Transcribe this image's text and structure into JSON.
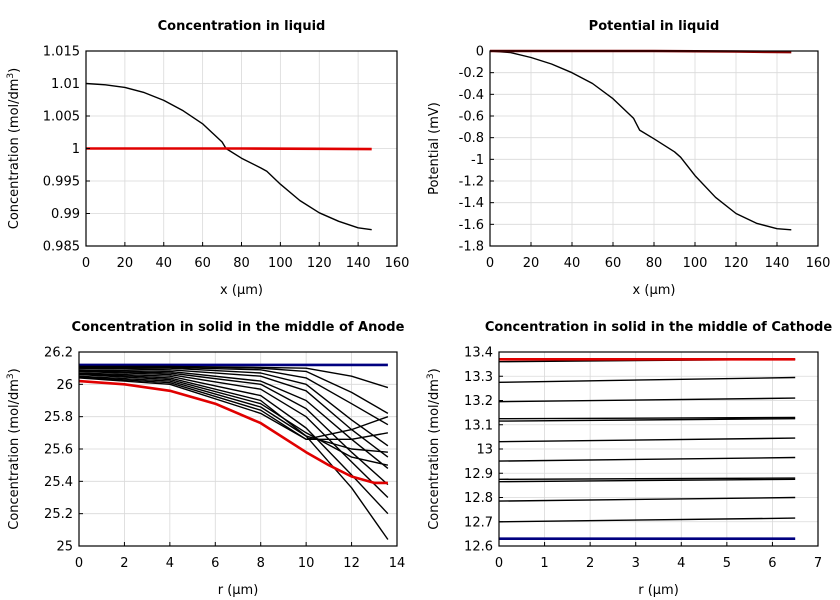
{
  "chart_data": [
    {
      "type": "line",
      "title": "Concentration in liquid",
      "xlabel": "x (µm)",
      "ylabel": "Concentration (mol/dm",
      "ylabel_sup": "3",
      "ylabel_tail": ")",
      "xlim": [
        0,
        160
      ],
      "ylim": [
        0.985,
        1.015
      ],
      "x_ticks": [
        "0",
        "20",
        "40",
        "60",
        "80",
        "100",
        "120",
        "140",
        "160"
      ],
      "y_ticks": [
        "0.985",
        "0.99",
        "0.995",
        "1",
        "1.005",
        "1.01",
        "1.015"
      ],
      "grid": true,
      "series": [
        {
          "color": "#000000",
          "x": [
            0,
            10,
            20,
            30,
            40,
            50,
            60,
            70,
            72,
            80,
            90,
            93,
            100,
            110,
            120,
            130,
            140,
            147
          ],
          "y": [
            1.01,
            1.0098,
            1.0094,
            1.0086,
            1.0074,
            1.0058,
            1.0038,
            1.001,
            1.0,
            0.9985,
            0.997,
            0.9965,
            0.9945,
            0.992,
            0.9901,
            0.9888,
            0.9878,
            0.9875
          ]
        },
        {
          "color": "#e00000",
          "x": [
            0,
            40,
            80,
            120,
            147
          ],
          "y": [
            1.0,
            1.0,
            1.0,
            0.99995,
            0.9999
          ]
        }
      ]
    },
    {
      "type": "line",
      "title": "Potential in liquid",
      "xlabel": "x (µm)",
      "ylabel": "Potential (mV)",
      "ylabel_sup": "",
      "ylabel_tail": "",
      "xlim": [
        0,
        160
      ],
      "ylim": [
        -1.8,
        0
      ],
      "x_ticks": [
        "0",
        "20",
        "40",
        "60",
        "80",
        "100",
        "120",
        "140",
        "160"
      ],
      "y_ticks": [
        "-1.8",
        "-1.6",
        "-1.4",
        "-1.2",
        "-1",
        "-0.8",
        "-0.6",
        "-0.4",
        "-0.2",
        "0"
      ],
      "grid": true,
      "series": [
        {
          "color": "#000000",
          "x": [
            0,
            10,
            20,
            30,
            40,
            50,
            60,
            70,
            73,
            80,
            90,
            93,
            100,
            110,
            120,
            130,
            140,
            147
          ],
          "y": [
            0.0,
            -0.015,
            -0.06,
            -0.12,
            -0.2,
            -0.3,
            -0.44,
            -0.62,
            -0.73,
            -0.81,
            -0.93,
            -0.98,
            -1.15,
            -1.35,
            -1.5,
            -1.59,
            -1.64,
            -1.65
          ]
        },
        {
          "color": "#8b0000",
          "x": [
            0,
            40,
            80,
            120,
            147
          ],
          "y": [
            0.0,
            0.0,
            0.0,
            -0.005,
            -0.01
          ]
        }
      ]
    },
    {
      "type": "line",
      "title": "Concentration in solid in the middle of Anode",
      "xlabel": "r (µm)",
      "ylabel": "Concentration (mol/dm",
      "ylabel_sup": "3",
      "ylabel_tail": ")",
      "xlim": [
        0,
        14
      ],
      "ylim": [
        25,
        26.2
      ],
      "x_ticks": [
        "0",
        "2",
        "4",
        "6",
        "8",
        "10",
        "12",
        "14"
      ],
      "y_ticks": [
        "25",
        "25.2",
        "25.4",
        "25.6",
        "25.8",
        "26",
        "26.2"
      ],
      "grid": true,
      "series": [
        {
          "color": "#000080",
          "x": [
            0,
            4,
            8,
            12,
            13.6
          ],
          "y": [
            26.12,
            26.12,
            26.12,
            26.12,
            26.12
          ]
        },
        {
          "color": "#000000",
          "x": [
            0,
            4,
            8,
            10,
            12,
            13.6
          ],
          "y": [
            26.11,
            26.11,
            26.105,
            26.1,
            26.05,
            25.98
          ]
        },
        {
          "color": "#000000",
          "x": [
            0,
            4,
            8,
            10,
            12,
            13.6
          ],
          "y": [
            26.11,
            26.11,
            26.1,
            26.08,
            25.95,
            25.82
          ]
        },
        {
          "color": "#000000",
          "x": [
            0,
            4,
            8,
            10,
            12,
            13.6
          ],
          "y": [
            26.105,
            26.105,
            26.09,
            26.04,
            25.88,
            25.75
          ]
        },
        {
          "color": "#000000",
          "x": [
            0,
            4,
            8,
            10,
            12,
            13.6
          ],
          "y": [
            26.1,
            26.1,
            26.07,
            26.0,
            25.78,
            25.62
          ]
        },
        {
          "color": "#000000",
          "x": [
            0,
            4,
            8,
            10,
            12,
            13.6
          ],
          "y": [
            26.1,
            26.09,
            26.05,
            25.96,
            25.72,
            25.55
          ]
        },
        {
          "color": "#000000",
          "x": [
            0,
            4,
            8,
            10,
            12,
            13.6
          ],
          "y": [
            26.09,
            26.08,
            26.02,
            25.9,
            25.66,
            25.48
          ]
        },
        {
          "color": "#000000",
          "x": [
            0,
            4,
            8,
            10,
            12,
            13.6
          ],
          "y": [
            26.085,
            26.07,
            26.0,
            25.85,
            25.58,
            25.38
          ]
        },
        {
          "color": "#000000",
          "x": [
            0,
            4,
            8,
            10,
            12,
            13.6
          ],
          "y": [
            26.08,
            26.06,
            25.97,
            25.8,
            25.52,
            25.3
          ]
        },
        {
          "color": "#000000",
          "x": [
            0,
            4,
            8,
            10,
            12,
            13.6
          ],
          "y": [
            26.07,
            26.05,
            25.93,
            25.73,
            25.44,
            25.2
          ]
        },
        {
          "color": "#000000",
          "x": [
            0,
            4,
            8,
            10,
            12,
            13.6
          ],
          "y": [
            26.065,
            26.04,
            25.9,
            25.68,
            25.36,
            25.04
          ]
        },
        {
          "color": "#000000",
          "x": [
            0,
            4,
            8,
            10,
            12,
            13.6
          ],
          "y": [
            26.06,
            26.03,
            25.88,
            25.7,
            25.55,
            25.5
          ]
        },
        {
          "color": "#000000",
          "x": [
            0,
            4,
            8,
            10,
            12,
            13.6
          ],
          "y": [
            26.05,
            26.02,
            25.86,
            25.68,
            25.6,
            25.58
          ]
        },
        {
          "color": "#000000",
          "x": [
            0,
            4,
            8,
            10,
            12,
            13.6
          ],
          "y": [
            26.045,
            26.01,
            25.84,
            25.66,
            25.66,
            25.7
          ]
        },
        {
          "color": "#000000",
          "x": [
            0,
            4,
            8,
            10,
            12,
            13.6
          ],
          "y": [
            26.04,
            26.0,
            25.82,
            25.66,
            25.72,
            25.8
          ]
        },
        {
          "color": "#e00000",
          "x": [
            0,
            2,
            4,
            6,
            8,
            10,
            11,
            12,
            13,
            13.6
          ],
          "y": [
            26.02,
            26.0,
            25.96,
            25.88,
            25.76,
            25.58,
            25.5,
            25.43,
            25.39,
            25.39
          ]
        }
      ]
    },
    {
      "type": "line",
      "title": "Concentration in solid in the middle of Cathode",
      "xlabel": "r (µm)",
      "ylabel": "Concentration (mol/dm",
      "ylabel_sup": "3",
      "ylabel_tail": ")",
      "xlim": [
        0,
        7
      ],
      "ylim": [
        12.6,
        13.4
      ],
      "x_ticks": [
        "0",
        "1",
        "2",
        "3",
        "4",
        "5",
        "6",
        "7"
      ],
      "y_ticks": [
        "12.6",
        "12.7",
        "12.8",
        "12.9",
        "13",
        "13.1",
        "13.2",
        "13.3",
        "13.4"
      ],
      "grid": true,
      "series": [
        {
          "color": "#000080",
          "x": [
            0,
            6.5
          ],
          "y": [
            12.63,
            12.63
          ]
        },
        {
          "color": "#000000",
          "x": [
            0,
            6.5
          ],
          "y": [
            12.7,
            12.715
          ]
        },
        {
          "color": "#000000",
          "x": [
            0,
            6.5
          ],
          "y": [
            12.785,
            12.8
          ]
        },
        {
          "color": "#000000",
          "x": [
            0,
            6.5
          ],
          "y": [
            12.865,
            12.875
          ]
        },
        {
          "color": "#000000",
          "x": [
            0,
            6.5
          ],
          "y": [
            12.875,
            12.88
          ]
        },
        {
          "color": "#000000",
          "x": [
            0,
            6.5
          ],
          "y": [
            12.95,
            12.965
          ]
        },
        {
          "color": "#000000",
          "x": [
            0,
            6.5
          ],
          "y": [
            13.03,
            13.045
          ]
        },
        {
          "color": "#000000",
          "x": [
            0,
            6.5
          ],
          "y": [
            13.115,
            13.125
          ]
        },
        {
          "color": "#000000",
          "x": [
            0,
            6.5
          ],
          "y": [
            13.125,
            13.13
          ]
        },
        {
          "color": "#000000",
          "x": [
            0,
            6.5
          ],
          "y": [
            13.195,
            13.21
          ]
        },
        {
          "color": "#000000",
          "x": [
            0,
            6.5
          ],
          "y": [
            13.275,
            13.295
          ]
        },
        {
          "color": "#000000",
          "x": [
            0,
            6.5
          ],
          "y": [
            13.36,
            13.37
          ]
        },
        {
          "color": "#e00000",
          "x": [
            0,
            6.5
          ],
          "y": [
            13.37,
            13.37
          ]
        }
      ]
    }
  ]
}
